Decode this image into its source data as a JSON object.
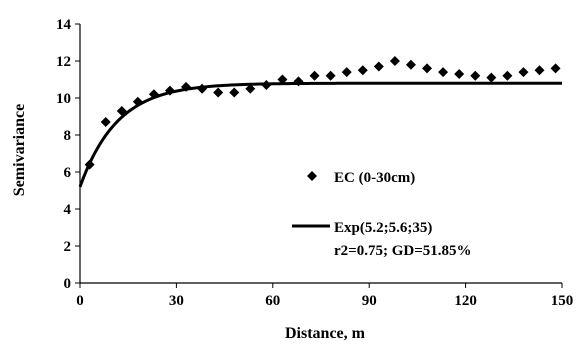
{
  "chart_data": {
    "type": "scatter",
    "xlabel": "Distance, m",
    "ylabel": "Semivariance",
    "xlim": [
      0,
      150
    ],
    "ylim": [
      0,
      14
    ],
    "x_ticks": [
      0,
      30,
      60,
      90,
      120,
      150
    ],
    "y_ticks": [
      0,
      2,
      4,
      6,
      8,
      10,
      12,
      14
    ],
    "grid": false,
    "legend_position": "center-right",
    "series": [
      {
        "name": "EC (0-30cm)",
        "kind": "points",
        "marker": "diamond",
        "x": [
          3,
          8,
          13,
          18,
          23,
          28,
          33,
          38,
          43,
          48,
          53,
          58,
          63,
          68,
          73,
          78,
          83,
          88,
          93,
          98,
          103,
          108,
          113,
          118,
          123,
          128,
          133,
          138,
          143,
          148
        ],
        "y": [
          6.4,
          8.7,
          9.3,
          9.8,
          10.2,
          10.4,
          10.6,
          10.5,
          10.3,
          10.3,
          10.5,
          10.7,
          11.0,
          10.9,
          11.2,
          11.2,
          11.4,
          11.5,
          11.7,
          12.0,
          11.8,
          11.6,
          11.4,
          11.3,
          11.2,
          11.1,
          11.2,
          11.4,
          11.5,
          11.6
        ]
      },
      {
        "name": "Exp(5.2;5.6;35)",
        "kind": "line",
        "model": "exponential",
        "nugget": 5.2,
        "partial_sill": 5.6,
        "range": 35,
        "stats_label": "r2=0.75; GD=51.85%"
      }
    ]
  }
}
